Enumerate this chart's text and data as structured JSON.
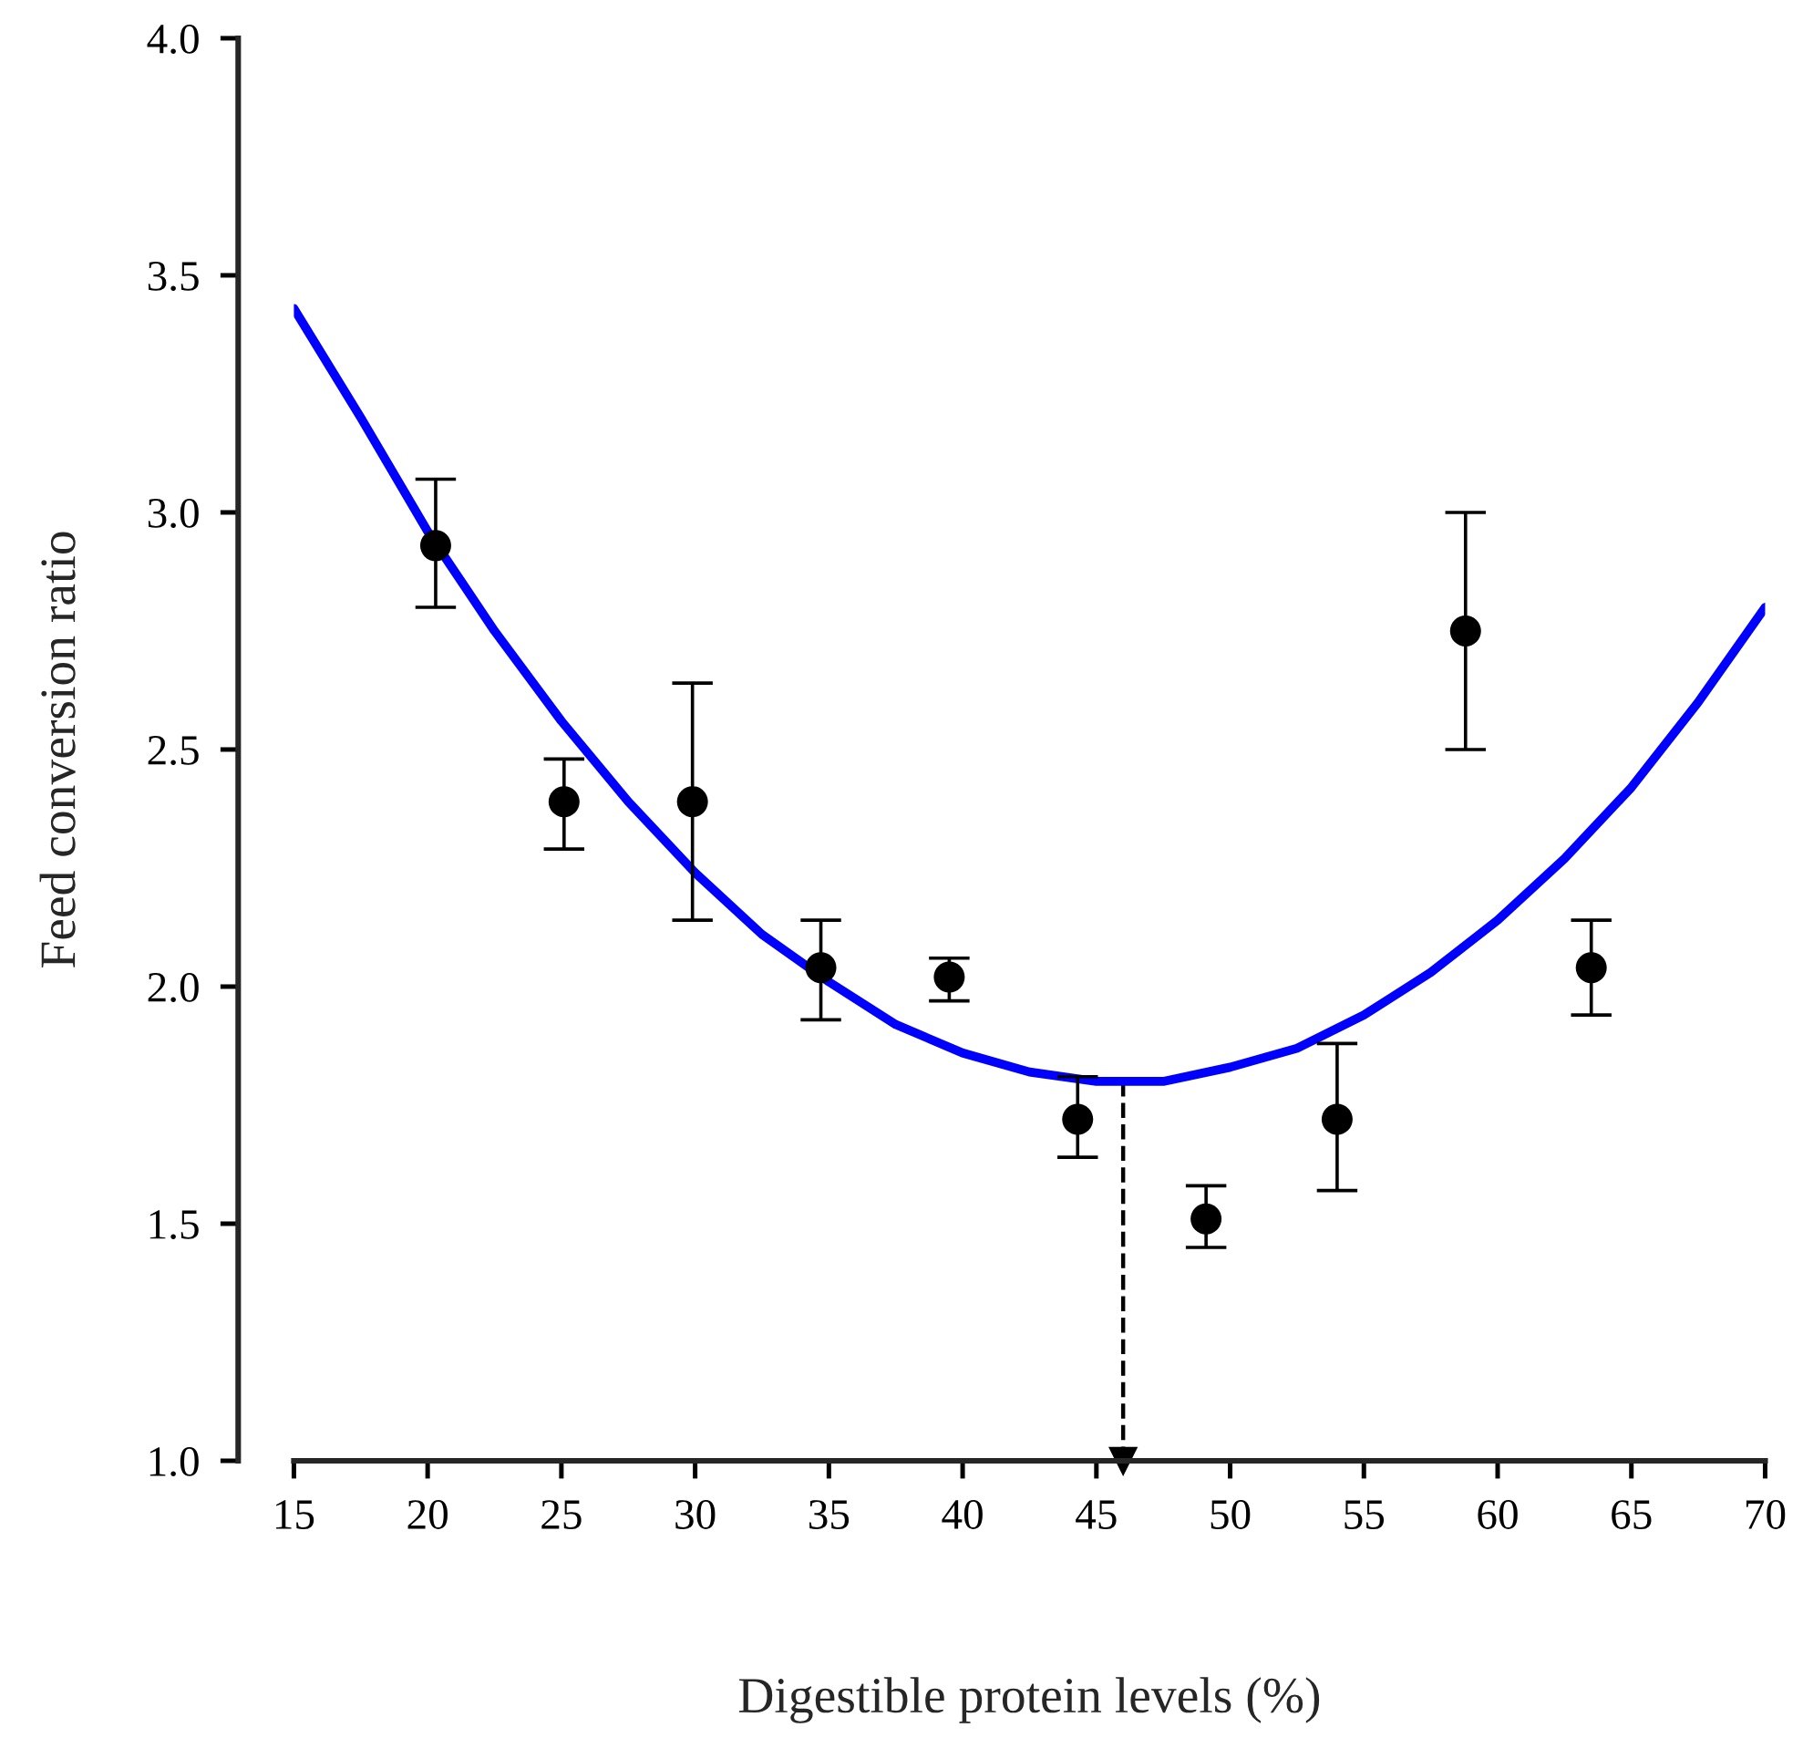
{
  "chart_data": {
    "type": "scatter",
    "xlabel": "Digestible protein levels (%)",
    "ylabel": "Feed conversion ratio",
    "xlim": [
      15,
      70
    ],
    "xticks": [
      15,
      20,
      25,
      30,
      35,
      40,
      45,
      50,
      55,
      60,
      65,
      70
    ],
    "ylim": [
      1.0,
      4.0
    ],
    "yticks": [
      {
        "value": 1.0,
        "label": "1.0"
      },
      {
        "value": 1.5,
        "label": "1.5"
      },
      {
        "value": 2.0,
        "label": "2.0"
      },
      {
        "value": 2.5,
        "label": "2.5"
      },
      {
        "value": 3.0,
        "label": "3.0"
      },
      {
        "value": 3.5,
        "label": "3.5"
      },
      {
        "value": 4.0,
        "label": "4.0"
      }
    ],
    "grid": false,
    "legend": false,
    "marker": "circle",
    "series": [
      {
        "color": "#000000",
        "x": [
          20.3,
          25.1,
          29.9,
          34.7,
          39.5,
          44.3,
          49.1,
          54.0,
          58.8,
          63.5
        ],
        "values": [
          2.93,
          2.39,
          2.39,
          2.04,
          2.02,
          1.72,
          1.51,
          1.72,
          2.75,
          2.04
        ],
        "errors": [
          [
            2.8,
            3.07
          ],
          [
            2.29,
            2.48
          ],
          [
            2.14,
            2.64
          ],
          [
            1.93,
            2.14
          ],
          [
            1.97,
            2.06
          ],
          [
            1.64,
            1.81
          ],
          [
            1.45,
            1.58
          ],
          [
            1.57,
            1.88
          ],
          [
            2.5,
            3.0
          ],
          [
            1.94,
            2.14
          ]
        ]
      },
      {
        "type": "line",
        "color": "#0000ff",
        "marker": "none",
        "line_style": "solid",
        "x": [
          15,
          17.5,
          20,
          22.5,
          25,
          27.5,
          30,
          32.5,
          35,
          37.5,
          40,
          42.5,
          45,
          46,
          47.5,
          50,
          52.5,
          55,
          57.5,
          60,
          62.5,
          65,
          67.5,
          70
        ],
        "values": [
          3.43,
          3.2,
          2.96,
          2.75,
          2.56,
          2.39,
          2.24,
          2.11,
          2.01,
          1.92,
          1.86,
          1.82,
          1.8,
          1.8,
          1.8,
          1.83,
          1.87,
          1.94,
          2.03,
          2.14,
          2.27,
          2.42,
          2.6,
          2.8
        ]
      }
    ],
    "ref_lines": [
      {
        "axis": "x",
        "value": 46,
        "color": "#000000",
        "line_style": "dashed"
      }
    ]
  }
}
